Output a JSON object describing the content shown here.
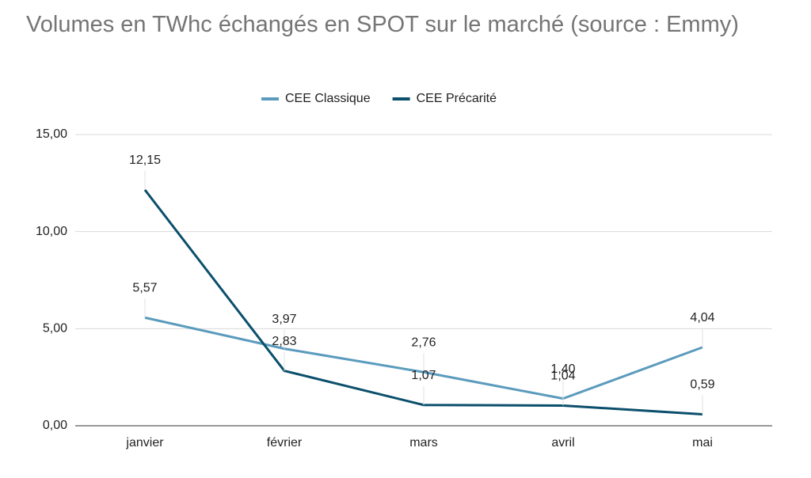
{
  "chart_data": {
    "type": "line",
    "title": "Volumes en TWhc échangés en SPOT sur le marché (source : Emmy)",
    "categories": [
      "janvier",
      "février",
      "mars",
      "avril",
      "mai"
    ],
    "series": [
      {
        "name": "CEE Classique",
        "color": "#5b9bbd",
        "values": [
          5.57,
          3.97,
          2.76,
          1.4,
          4.04
        ],
        "value_labels": [
          "5,57",
          "3,97",
          "2,76",
          "1,40",
          "4,04"
        ]
      },
      {
        "name": "CEE Précarité",
        "color": "#0b4f6c",
        "values": [
          12.15,
          2.83,
          1.07,
          1.04,
          0.59
        ],
        "value_labels": [
          "12,15",
          "2,83",
          "1,07",
          "1,04",
          "0,59"
        ]
      }
    ],
    "ylim": [
      0,
      15
    ],
    "yticks": [
      {
        "value": 0,
        "label": "0,00"
      },
      {
        "value": 5,
        "label": "5,00"
      },
      {
        "value": 10,
        "label": "10,00"
      },
      {
        "value": 15,
        "label": "15,00"
      }
    ],
    "grid": true,
    "legend": "top"
  }
}
